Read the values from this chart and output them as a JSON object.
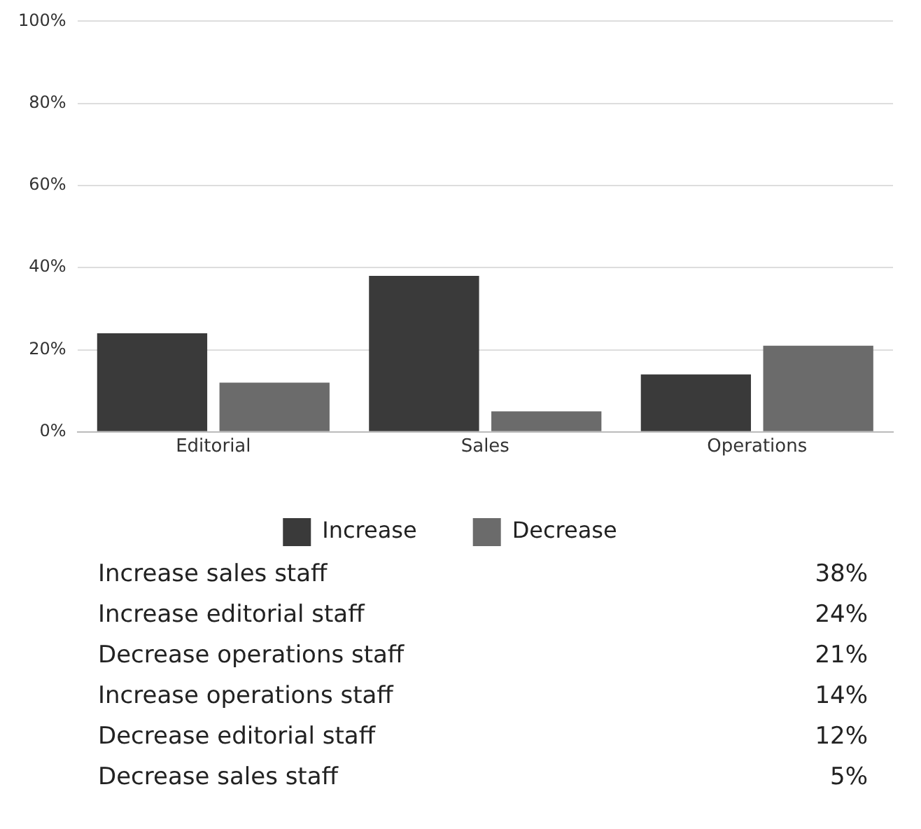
{
  "chart_data": {
    "type": "bar",
    "categories": [
      "Editorial",
      "Sales",
      "Operations"
    ],
    "series": [
      {
        "name": "Increase",
        "color": "#3a3a3a",
        "values": [
          24,
          38,
          14
        ]
      },
      {
        "name": "Decrease",
        "color": "#6b6b6b",
        "values": [
          12,
          5,
          21
        ]
      }
    ],
    "ylim": [
      0,
      100
    ],
    "yticks": [
      {
        "value": 0,
        "label": "0%"
      },
      {
        "value": 20,
        "label": "20%"
      },
      {
        "value": 40,
        "label": "40%"
      },
      {
        "value": 60,
        "label": "60%"
      },
      {
        "value": 80,
        "label": "80%"
      },
      {
        "value": 100,
        "label": "100%"
      }
    ],
    "grid": "y",
    "legend": "bottom",
    "annotations": [
      "Increase sales staff",
      "38%",
      "Increase editorial staff",
      "24%",
      "Decrease operations staff",
      "21%",
      "Increase operations staff",
      "14%",
      "Decrease editorial staff",
      "12%",
      "Decrease sales staff",
      "5%"
    ]
  }
}
